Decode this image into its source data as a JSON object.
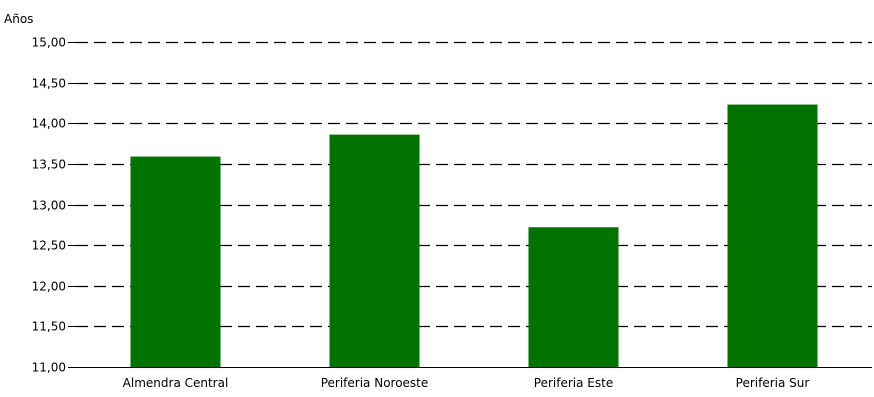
{
  "colors": {
    "bar": "#007300",
    "grid": "#000000",
    "axis": "#000000",
    "text": "#000000",
    "background": "#ffffff"
  },
  "chart_data": {
    "type": "bar",
    "ylabel": "Años",
    "ylim": [
      11.0,
      15.0
    ],
    "yticks": [
      11.0,
      11.5,
      12.0,
      12.5,
      13.0,
      13.5,
      14.0,
      14.5,
      15.0
    ],
    "ytick_labels": [
      "11,00",
      "11,50",
      "12,00",
      "12,50",
      "13,00",
      "13,50",
      "14,00",
      "14,50",
      "15,00"
    ],
    "categories": [
      "Almendra Central",
      "Periferia Noroeste",
      "Periferia Este",
      "Periferia Sur"
    ],
    "values": [
      13.59,
      13.86,
      12.72,
      14.23
    ],
    "grid": true,
    "grid_style": "dashed",
    "legend": "none"
  }
}
